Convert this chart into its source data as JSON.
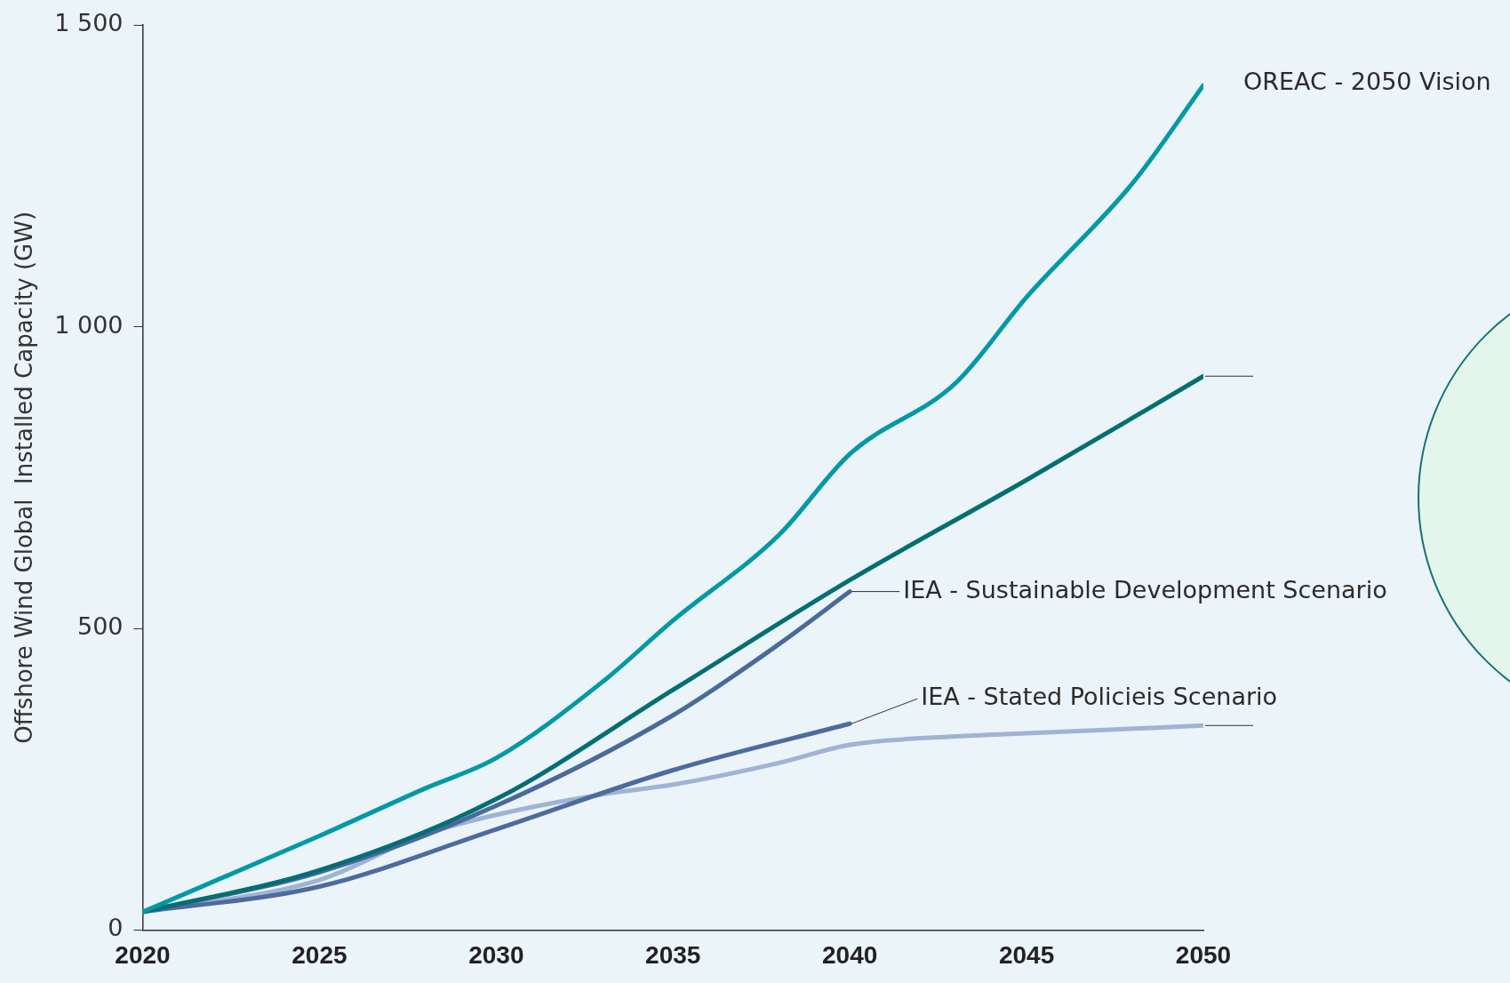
{
  "chart_data": {
    "type": "line",
    "ylabel": "Offshore Wind Global  Installed Capacity (GW)",
    "xlim": [
      2020,
      2050
    ],
    "xticks": [
      2020,
      2025,
      2030,
      2035,
      2040,
      2045,
      2050
    ],
    "ylim": [
      0,
      1500
    ],
    "yticks": [
      0,
      {
        "value": 500,
        "label": "500"
      },
      {
        "value": 1000,
        "label": "1 000"
      },
      {
        "value": 1500,
        "label": "1 500"
      }
    ],
    "grid": false,
    "legend": false,
    "marker": "none",
    "line_style": "solid",
    "series": [
      {
        "name": "OREAC - 2050 Vision",
        "color": "#0399a6",
        "x": [
          2020,
          2025,
          2028,
          2030,
          2033,
          2035,
          2038,
          2040,
          2043,
          2045,
          2048,
          2050
        ],
        "values": [
          30,
          156,
          235,
          285,
          411,
          513,
          655,
          789,
          907,
          1049,
          1238,
          1400
        ]
      },
      {
        "color": "#056e74",
        "x": [
          2020,
          2025,
          2030,
          2035,
          2040,
          2045,
          2050
        ],
        "values": [
          30,
          99,
          217,
          398,
          580,
          746,
          918
        ]
      },
      {
        "name": "IEA - Sustainable Development Scenario",
        "color": "#4a6a9c",
        "x": [
          2020,
          2025,
          2030,
          2035,
          2038,
          2040
        ],
        "values": [
          30,
          96,
          206,
          356,
          474,
          561
        ]
      },
      {
        "name": "IEA - Stated Policieis Scenario",
        "color": "#4d6b9e",
        "x": [
          2020,
          2025,
          2030,
          2035,
          2040
        ],
        "values": [
          30,
          72,
          167,
          265,
          342
        ]
      },
      {
        "color": "#9fb4d4",
        "x": [
          2020,
          2025,
          2028,
          2030,
          2033,
          2035,
          2038,
          2040,
          2043,
          2045,
          2050
        ],
        "values": [
          30,
          83,
          159,
          191,
          225,
          241,
          277,
          307,
          321,
          326,
          339
        ]
      }
    ]
  }
}
